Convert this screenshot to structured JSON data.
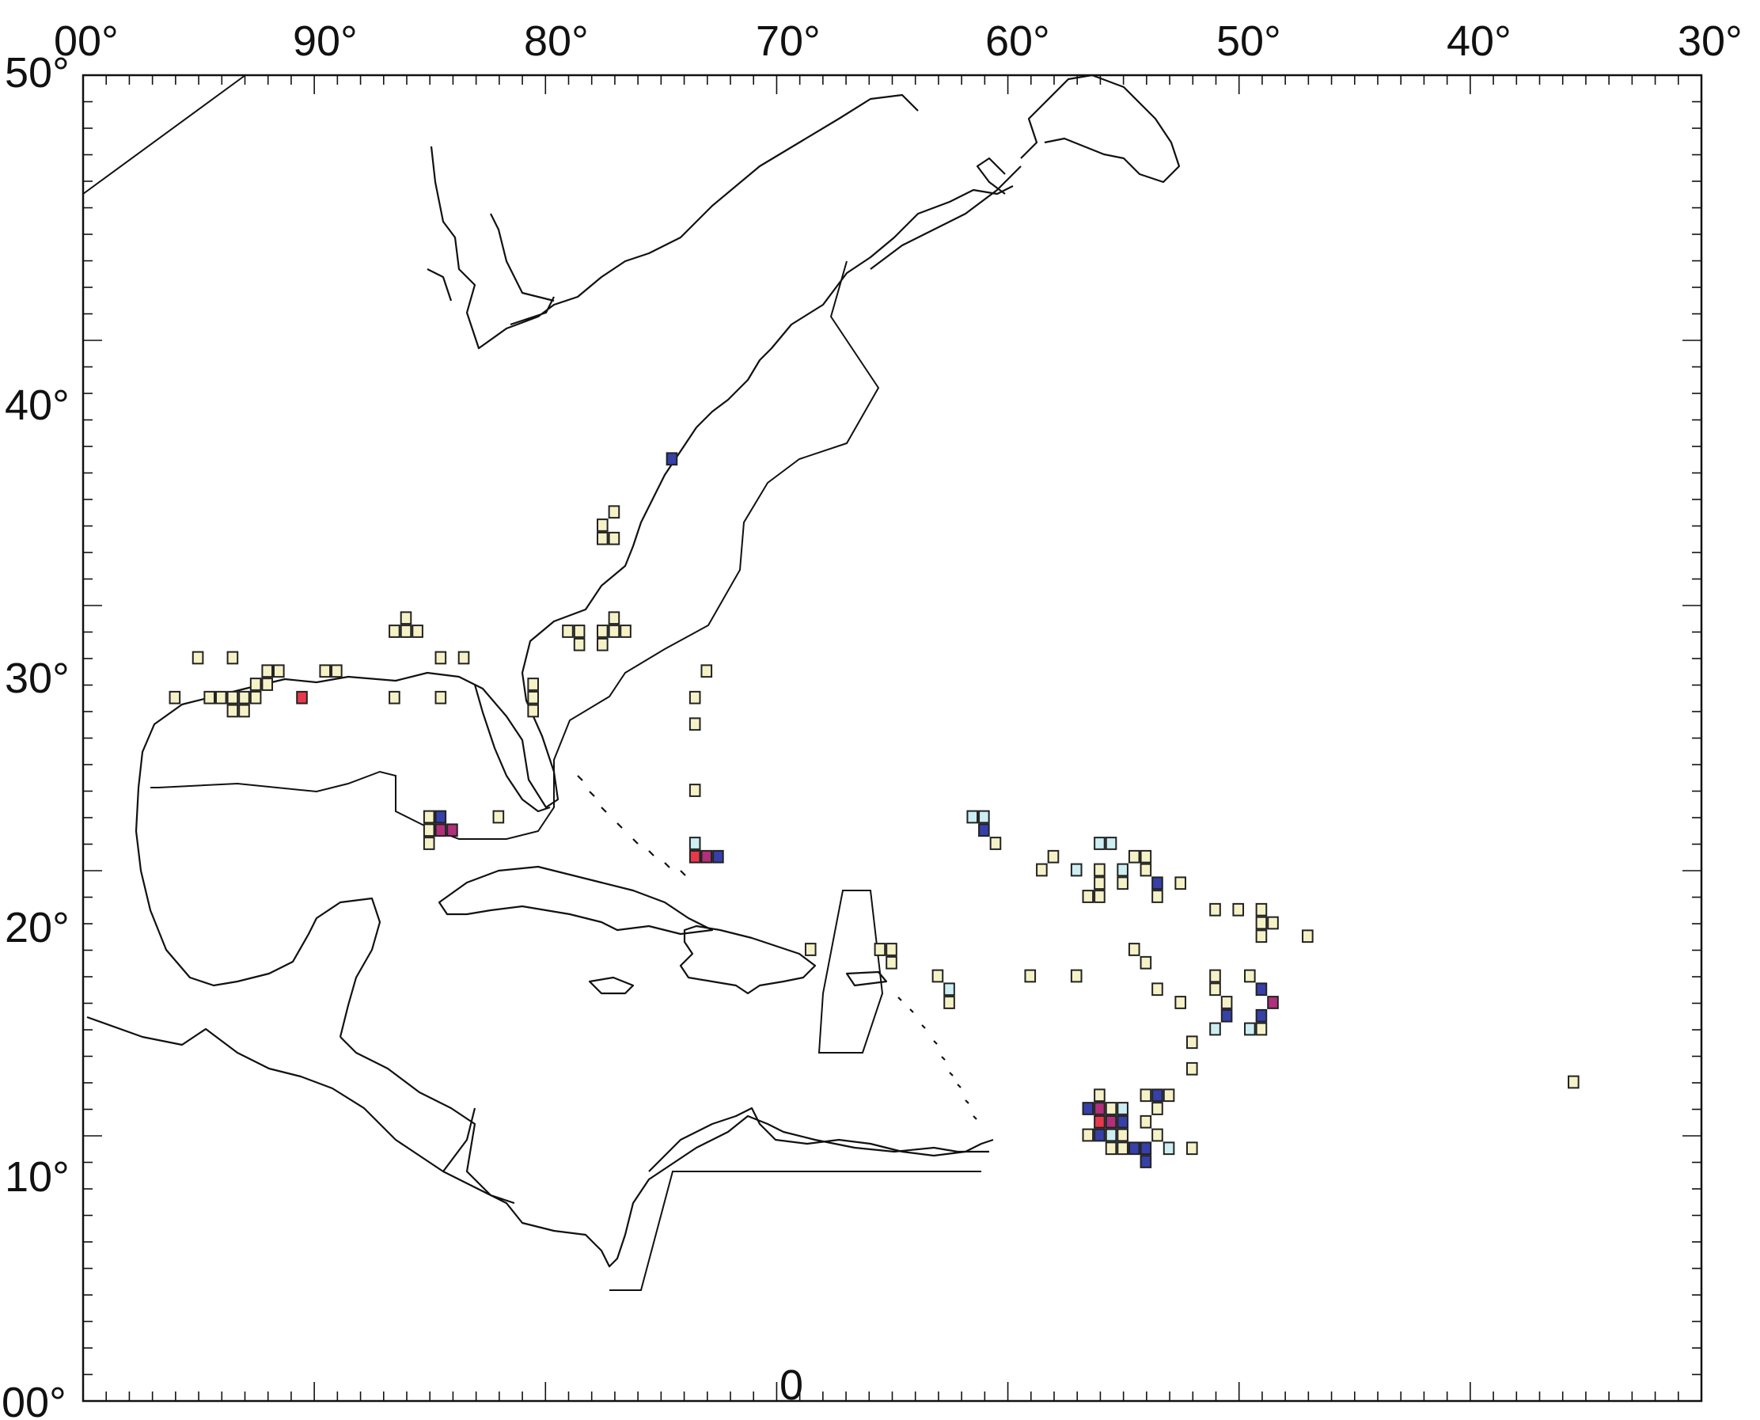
{
  "map": {
    "lon_range": [
      -100,
      -30
    ],
    "lat_range": [
      0,
      50
    ],
    "lon_tick_labels": [
      "00°",
      "90°",
      "80°",
      "70°",
      "60°",
      "50°",
      "40°",
      "30°"
    ],
    "lat_tick_labels": [
      "00°",
      "10°",
      "20°",
      "30°",
      "40°",
      "50°"
    ],
    "center_label": "0",
    "colors": {
      "pale": "#f6f2c8",
      "light_blue": "#cdeef2",
      "blue": "#3640a8",
      "red": "#e8394c",
      "magenta": "#b0307a"
    },
    "grid_cells_deg": 0.5,
    "cells": [
      {
        "lon": -95.0,
        "lat": 28.0,
        "c": "pale"
      },
      {
        "lon": -93.5,
        "lat": 28.0,
        "c": "pale"
      },
      {
        "lon": -96.0,
        "lat": 26.5,
        "c": "pale"
      },
      {
        "lon": -94.5,
        "lat": 26.5,
        "c": "pale"
      },
      {
        "lon": -94.0,
        "lat": 26.5,
        "c": "pale"
      },
      {
        "lon": -93.5,
        "lat": 26.5,
        "c": "pale"
      },
      {
        "lon": -93.0,
        "lat": 26.5,
        "c": "pale"
      },
      {
        "lon": -92.5,
        "lat": 26.5,
        "c": "pale"
      },
      {
        "lon": -93.5,
        "lat": 26.0,
        "c": "pale"
      },
      {
        "lon": -93.0,
        "lat": 26.0,
        "c": "pale"
      },
      {
        "lon": -92.5,
        "lat": 27.0,
        "c": "pale"
      },
      {
        "lon": -92.0,
        "lat": 27.0,
        "c": "pale"
      },
      {
        "lon": -91.5,
        "lat": 27.5,
        "c": "pale"
      },
      {
        "lon": -92.0,
        "lat": 27.5,
        "c": "pale"
      },
      {
        "lon": -90.5,
        "lat": 26.5,
        "c": "red"
      },
      {
        "lon": -89.5,
        "lat": 27.5,
        "c": "pale"
      },
      {
        "lon": -89.0,
        "lat": 27.5,
        "c": "pale"
      },
      {
        "lon": -86.5,
        "lat": 26.5,
        "c": "pale"
      },
      {
        "lon": -86.5,
        "lat": 29.0,
        "c": "pale"
      },
      {
        "lon": -86.0,
        "lat": 29.0,
        "c": "pale"
      },
      {
        "lon": -86.0,
        "lat": 29.5,
        "c": "pale"
      },
      {
        "lon": -85.5,
        "lat": 29.0,
        "c": "pale"
      },
      {
        "lon": -84.5,
        "lat": 28.0,
        "c": "pale"
      },
      {
        "lon": -83.5,
        "lat": 28.0,
        "c": "pale"
      },
      {
        "lon": -84.5,
        "lat": 26.5,
        "c": "pale"
      },
      {
        "lon": -80.5,
        "lat": 27.0,
        "c": "pale"
      },
      {
        "lon": -80.5,
        "lat": 26.5,
        "c": "pale"
      },
      {
        "lon": -80.5,
        "lat": 26.0,
        "c": "pale"
      },
      {
        "lon": -79.0,
        "lat": 29.0,
        "c": "pale"
      },
      {
        "lon": -78.5,
        "lat": 29.0,
        "c": "pale"
      },
      {
        "lon": -78.5,
        "lat": 28.5,
        "c": "pale"
      },
      {
        "lon": -77.5,
        "lat": 29.0,
        "c": "pale"
      },
      {
        "lon": -77.5,
        "lat": 28.5,
        "c": "pale"
      },
      {
        "lon": -77.0,
        "lat": 29.0,
        "c": "pale"
      },
      {
        "lon": -76.5,
        "lat": 29.0,
        "c": "pale"
      },
      {
        "lon": -77.0,
        "lat": 29.5,
        "c": "pale"
      },
      {
        "lon": -77.5,
        "lat": 32.5,
        "c": "pale"
      },
      {
        "lon": -77.0,
        "lat": 32.5,
        "c": "pale"
      },
      {
        "lon": -77.5,
        "lat": 33.0,
        "c": "pale"
      },
      {
        "lon": -77.0,
        "lat": 33.5,
        "c": "pale"
      },
      {
        "lon": -74.5,
        "lat": 35.5,
        "c": "blue"
      },
      {
        "lon": -73.0,
        "lat": 27.5,
        "c": "pale"
      },
      {
        "lon": -73.5,
        "lat": 26.5,
        "c": "pale"
      },
      {
        "lon": -73.5,
        "lat": 25.5,
        "c": "pale"
      },
      {
        "lon": -73.5,
        "lat": 23.0,
        "c": "pale"
      },
      {
        "lon": -85.0,
        "lat": 22.0,
        "c": "pale"
      },
      {
        "lon": -85.0,
        "lat": 21.5,
        "c": "pale"
      },
      {
        "lon": -85.0,
        "lat": 21.0,
        "c": "pale"
      },
      {
        "lon": -84.5,
        "lat": 22.0,
        "c": "blue"
      },
      {
        "lon": -84.5,
        "lat": 21.5,
        "c": "magenta"
      },
      {
        "lon": -84.0,
        "lat": 21.5,
        "c": "magenta"
      },
      {
        "lon": -82.0,
        "lat": 22.0,
        "c": "pale"
      },
      {
        "lon": -73.5,
        "lat": 21.0,
        "c": "light_blue"
      },
      {
        "lon": -73.5,
        "lat": 20.5,
        "c": "red"
      },
      {
        "lon": -73.0,
        "lat": 20.5,
        "c": "magenta"
      },
      {
        "lon": -72.5,
        "lat": 20.5,
        "c": "blue"
      },
      {
        "lon": -68.5,
        "lat": 17.0,
        "c": "pale"
      },
      {
        "lon": -65.5,
        "lat": 17.0,
        "c": "pale"
      },
      {
        "lon": -65.0,
        "lat": 17.0,
        "c": "pale"
      },
      {
        "lon": -65.0,
        "lat": 16.5,
        "c": "pale"
      },
      {
        "lon": -63.0,
        "lat": 16.0,
        "c": "pale"
      },
      {
        "lon": -62.5,
        "lat": 15.5,
        "c": "light_blue"
      },
      {
        "lon": -62.5,
        "lat": 15.0,
        "c": "pale"
      },
      {
        "lon": -61.5,
        "lat": 22.0,
        "c": "light_blue"
      },
      {
        "lon": -61.0,
        "lat": 22.0,
        "c": "light_blue"
      },
      {
        "lon": -61.0,
        "lat": 21.5,
        "c": "blue"
      },
      {
        "lon": -60.5,
        "lat": 21.0,
        "c": "pale"
      },
      {
        "lon": -59.0,
        "lat": 16.0,
        "c": "pale"
      },
      {
        "lon": -58.5,
        "lat": 20.0,
        "c": "pale"
      },
      {
        "lon": -58.0,
        "lat": 20.5,
        "c": "pale"
      },
      {
        "lon": -57.0,
        "lat": 20.0,
        "c": "light_blue"
      },
      {
        "lon": -57.0,
        "lat": 16.0,
        "c": "pale"
      },
      {
        "lon": -56.5,
        "lat": 19.0,
        "c": "pale"
      },
      {
        "lon": -56.0,
        "lat": 19.0,
        "c": "pale"
      },
      {
        "lon": -56.0,
        "lat": 19.5,
        "c": "pale"
      },
      {
        "lon": -56.0,
        "lat": 20.0,
        "c": "pale"
      },
      {
        "lon": -56.0,
        "lat": 21.0,
        "c": "light_blue"
      },
      {
        "lon": -55.5,
        "lat": 21.0,
        "c": "light_blue"
      },
      {
        "lon": -55.0,
        "lat": 20.0,
        "c": "light_blue"
      },
      {
        "lon": -55.0,
        "lat": 19.5,
        "c": "pale"
      },
      {
        "lon": -54.5,
        "lat": 20.5,
        "c": "pale"
      },
      {
        "lon": -54.0,
        "lat": 20.5,
        "c": "pale"
      },
      {
        "lon": -54.0,
        "lat": 20.0,
        "c": "pale"
      },
      {
        "lon": -53.5,
        "lat": 19.5,
        "c": "blue"
      },
      {
        "lon": -53.5,
        "lat": 19.0,
        "c": "pale"
      },
      {
        "lon": -52.5,
        "lat": 19.5,
        "c": "pale"
      },
      {
        "lon": -54.5,
        "lat": 17.0,
        "c": "pale"
      },
      {
        "lon": -54.0,
        "lat": 16.5,
        "c": "pale"
      },
      {
        "lon": -53.5,
        "lat": 15.5,
        "c": "pale"
      },
      {
        "lon": -52.5,
        "lat": 15.0,
        "c": "pale"
      },
      {
        "lon": -51.0,
        "lat": 18.5,
        "c": "pale"
      },
      {
        "lon": -50.0,
        "lat": 18.5,
        "c": "pale"
      },
      {
        "lon": -49.0,
        "lat": 18.5,
        "c": "pale"
      },
      {
        "lon": -49.0,
        "lat": 18.0,
        "c": "pale"
      },
      {
        "lon": -48.5,
        "lat": 18.0,
        "c": "pale"
      },
      {
        "lon": -49.0,
        "lat": 17.5,
        "c": "pale"
      },
      {
        "lon": -47.0,
        "lat": 17.5,
        "c": "pale"
      },
      {
        "lon": -51.0,
        "lat": 16.0,
        "c": "pale"
      },
      {
        "lon": -51.0,
        "lat": 15.5,
        "c": "pale"
      },
      {
        "lon": -50.5,
        "lat": 15.0,
        "c": "pale"
      },
      {
        "lon": -50.5,
        "lat": 14.5,
        "c": "blue"
      },
      {
        "lon": -51.0,
        "lat": 14.0,
        "c": "light_blue"
      },
      {
        "lon": -49.5,
        "lat": 16.0,
        "c": "pale"
      },
      {
        "lon": -49.0,
        "lat": 15.5,
        "c": "blue"
      },
      {
        "lon": -48.5,
        "lat": 15.0,
        "c": "magenta"
      },
      {
        "lon": -49.0,
        "lat": 14.5,
        "c": "blue"
      },
      {
        "lon": -49.0,
        "lat": 14.0,
        "c": "pale"
      },
      {
        "lon": -49.5,
        "lat": 14.0,
        "c": "light_blue"
      },
      {
        "lon": -52.0,
        "lat": 13.5,
        "c": "pale"
      },
      {
        "lon": -52.0,
        "lat": 12.5,
        "c": "pale"
      },
      {
        "lon": -35.5,
        "lat": 12.0,
        "c": "pale"
      },
      {
        "lon": -56.5,
        "lat": 11.0,
        "c": "blue"
      },
      {
        "lon": -56.0,
        "lat": 11.0,
        "c": "magenta"
      },
      {
        "lon": -56.0,
        "lat": 11.5,
        "c": "pale"
      },
      {
        "lon": -55.5,
        "lat": 11.0,
        "c": "pale"
      },
      {
        "lon": -55.0,
        "lat": 11.0,
        "c": "light_blue"
      },
      {
        "lon": -56.0,
        "lat": 10.5,
        "c": "red"
      },
      {
        "lon": -55.5,
        "lat": 10.5,
        "c": "magenta"
      },
      {
        "lon": -55.0,
        "lat": 10.5,
        "c": "blue"
      },
      {
        "lon": -56.5,
        "lat": 10.0,
        "c": "pale"
      },
      {
        "lon": -56.0,
        "lat": 10.0,
        "c": "blue"
      },
      {
        "lon": -55.5,
        "lat": 10.0,
        "c": "light_blue"
      },
      {
        "lon": -55.0,
        "lat": 10.0,
        "c": "pale"
      },
      {
        "lon": -55.5,
        "lat": 9.5,
        "c": "pale"
      },
      {
        "lon": -55.0,
        "lat": 9.5,
        "c": "pale"
      },
      {
        "lon": -54.5,
        "lat": 9.5,
        "c": "blue"
      },
      {
        "lon": -54.0,
        "lat": 9.5,
        "c": "blue"
      },
      {
        "lon": -54.0,
        "lat": 9.0,
        "c": "blue"
      },
      {
        "lon": -53.0,
        "lat": 9.5,
        "c": "light_blue"
      },
      {
        "lon": -52.0,
        "lat": 9.5,
        "c": "pale"
      },
      {
        "lon": -54.0,
        "lat": 10.5,
        "c": "pale"
      },
      {
        "lon": -54.0,
        "lat": 11.5,
        "c": "pale"
      },
      {
        "lon": -53.5,
        "lat": 11.5,
        "c": "blue"
      },
      {
        "lon": -53.0,
        "lat": 11.5,
        "c": "pale"
      },
      {
        "lon": -53.5,
        "lat": 11.0,
        "c": "pale"
      },
      {
        "lon": -53.5,
        "lat": 10.0,
        "c": "pale"
      }
    ]
  }
}
